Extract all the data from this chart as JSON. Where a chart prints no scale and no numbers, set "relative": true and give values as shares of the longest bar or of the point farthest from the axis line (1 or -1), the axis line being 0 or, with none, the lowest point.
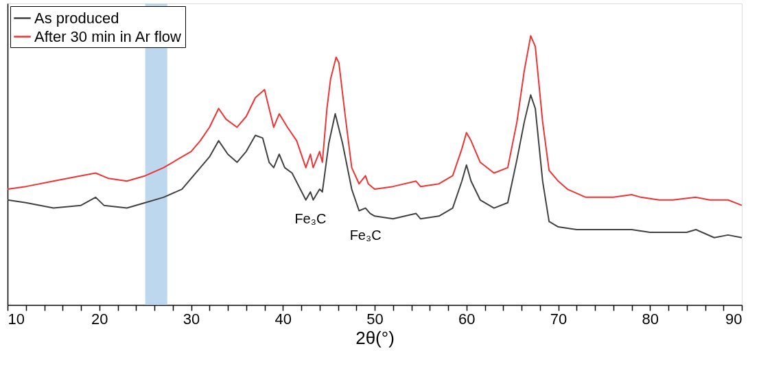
{
  "chart_data": {
    "type": "line",
    "relative": true,
    "xlabel": "2θ(°)",
    "xlim": [
      10,
      90
    ],
    "xticks": [
      10,
      {
        "value": 12,
        "label": null
      },
      {
        "value": 14,
        "label": null
      },
      {
        "value": 16,
        "label": null
      },
      {
        "value": 18,
        "label": null
      },
      20,
      {
        "value": 22,
        "label": null
      },
      {
        "value": 24,
        "label": null
      },
      {
        "value": 26,
        "label": null
      },
      {
        "value": 28,
        "label": null
      },
      30,
      {
        "value": 32,
        "label": null
      },
      {
        "value": 34,
        "label": null
      },
      {
        "value": 36,
        "label": null
      },
      {
        "value": 38,
        "label": null
      },
      40,
      {
        "value": 42,
        "label": null
      },
      {
        "value": 44,
        "label": null
      },
      {
        "value": 46,
        "label": null
      },
      {
        "value": 48,
        "label": null
      },
      50,
      {
        "value": 52,
        "label": null
      },
      {
        "value": 54,
        "label": null
      },
      {
        "value": 56,
        "label": null
      },
      {
        "value": 58,
        "label": null
      },
      60,
      {
        "value": 62,
        "label": null
      },
      {
        "value": 64,
        "label": null
      },
      {
        "value": 66,
        "label": null
      },
      {
        "value": 68,
        "label": null
      },
      70,
      {
        "value": 72,
        "label": null
      },
      {
        "value": 74,
        "label": null
      },
      {
        "value": 76,
        "label": null
      },
      {
        "value": 78,
        "label": null
      },
      80,
      {
        "value": 82,
        "label": null
      },
      {
        "value": 84,
        "label": null
      },
      {
        "value": 86,
        "label": null
      },
      {
        "value": 88,
        "label": null
      },
      90
    ],
    "legend": "top left",
    "grid": false,
    "marker": "none",
    "line_style": "solid",
    "bands": [
      {
        "axis": "x",
        "from": 25,
        "to": 27.4,
        "color": "#bdd7ee"
      }
    ],
    "annotations": [
      {
        "text": "Fe₃C",
        "x": 43,
        "y": 0.42
      },
      {
        "text": "Fe₃C",
        "x": 49,
        "y": 0.36
      }
    ],
    "series": [
      {
        "name": "As produced",
        "color": "#404040",
        "x": [
          10,
          12,
          15,
          18,
          19.6,
          20.5,
          23,
          25,
          27,
          29,
          31,
          32,
          33,
          34,
          35,
          36,
          37,
          37.8,
          38.5,
          39,
          39.6,
          40.2,
          41,
          42.5,
          43,
          43.3,
          44,
          44.3,
          45,
          45.7,
          46.5,
          47.5,
          48.3,
          49,
          49.5,
          50,
          52,
          54.5,
          55,
          57,
          58.5,
          59.5,
          60,
          60.5,
          61.5,
          63,
          64.5,
          65.5,
          66.3,
          67,
          67.5,
          68.3,
          69,
          70,
          72,
          76,
          78,
          80,
          82,
          84,
          85,
          87,
          88.5,
          90
        ],
        "values": [
          0.39,
          0.38,
          0.36,
          0.37,
          0.4,
          0.37,
          0.36,
          0.38,
          0.4,
          0.43,
          0.51,
          0.55,
          0.61,
          0.56,
          0.53,
          0.57,
          0.63,
          0.62,
          0.53,
          0.51,
          0.56,
          0.51,
          0.49,
          0.39,
          0.42,
          0.39,
          0.43,
          0.42,
          0.6,
          0.71,
          0.6,
          0.43,
          0.35,
          0.36,
          0.34,
          0.33,
          0.32,
          0.34,
          0.32,
          0.33,
          0.36,
          0.46,
          0.52,
          0.46,
          0.39,
          0.36,
          0.38,
          0.54,
          0.68,
          0.78,
          0.73,
          0.46,
          0.31,
          0.29,
          0.28,
          0.28,
          0.28,
          0.27,
          0.27,
          0.27,
          0.28,
          0.25,
          0.26,
          0.25
        ]
      },
      {
        "name": "After 30 min in Ar flow",
        "color": "#ee3333",
        "x": [
          10,
          12,
          15,
          18,
          19.6,
          21,
          23,
          25,
          27,
          29,
          30,
          31,
          32,
          33,
          33.8,
          35,
          36,
          37,
          38,
          38.5,
          39,
          39.6,
          40.5,
          41.5,
          42.5,
          43,
          43.3,
          44,
          44.3,
          44.8,
          45.2,
          45.8,
          46.1,
          46.8,
          47.5,
          48.3,
          49,
          49.3,
          50,
          52,
          54.5,
          55,
          57,
          58.5,
          59.5,
          60,
          60.5,
          61.5,
          63,
          64.5,
          65.5,
          66.3,
          67,
          67.5,
          68.3,
          69,
          70,
          71,
          73,
          76,
          78,
          79,
          81,
          82.5,
          85,
          86.5,
          88,
          88.5,
          90
        ],
        "values": [
          0.43,
          0.44,
          0.46,
          0.48,
          0.49,
          0.47,
          0.46,
          0.48,
          0.51,
          0.55,
          0.57,
          0.61,
          0.66,
          0.73,
          0.69,
          0.66,
          0.7,
          0.77,
          0.8,
          0.73,
          0.66,
          0.71,
          0.66,
          0.61,
          0.51,
          0.56,
          0.51,
          0.57,
          0.53,
          0.73,
          0.84,
          0.92,
          0.9,
          0.7,
          0.51,
          0.45,
          0.48,
          0.45,
          0.43,
          0.44,
          0.46,
          0.44,
          0.45,
          0.48,
          0.58,
          0.64,
          0.61,
          0.53,
          0.49,
          0.51,
          0.68,
          0.87,
          1,
          0.96,
          0.68,
          0.5,
          0.46,
          0.43,
          0.4,
          0.4,
          0.41,
          0.4,
          0.39,
          0.39,
          0.4,
          0.39,
          0.39,
          0.39,
          0.37
        ]
      }
    ]
  }
}
